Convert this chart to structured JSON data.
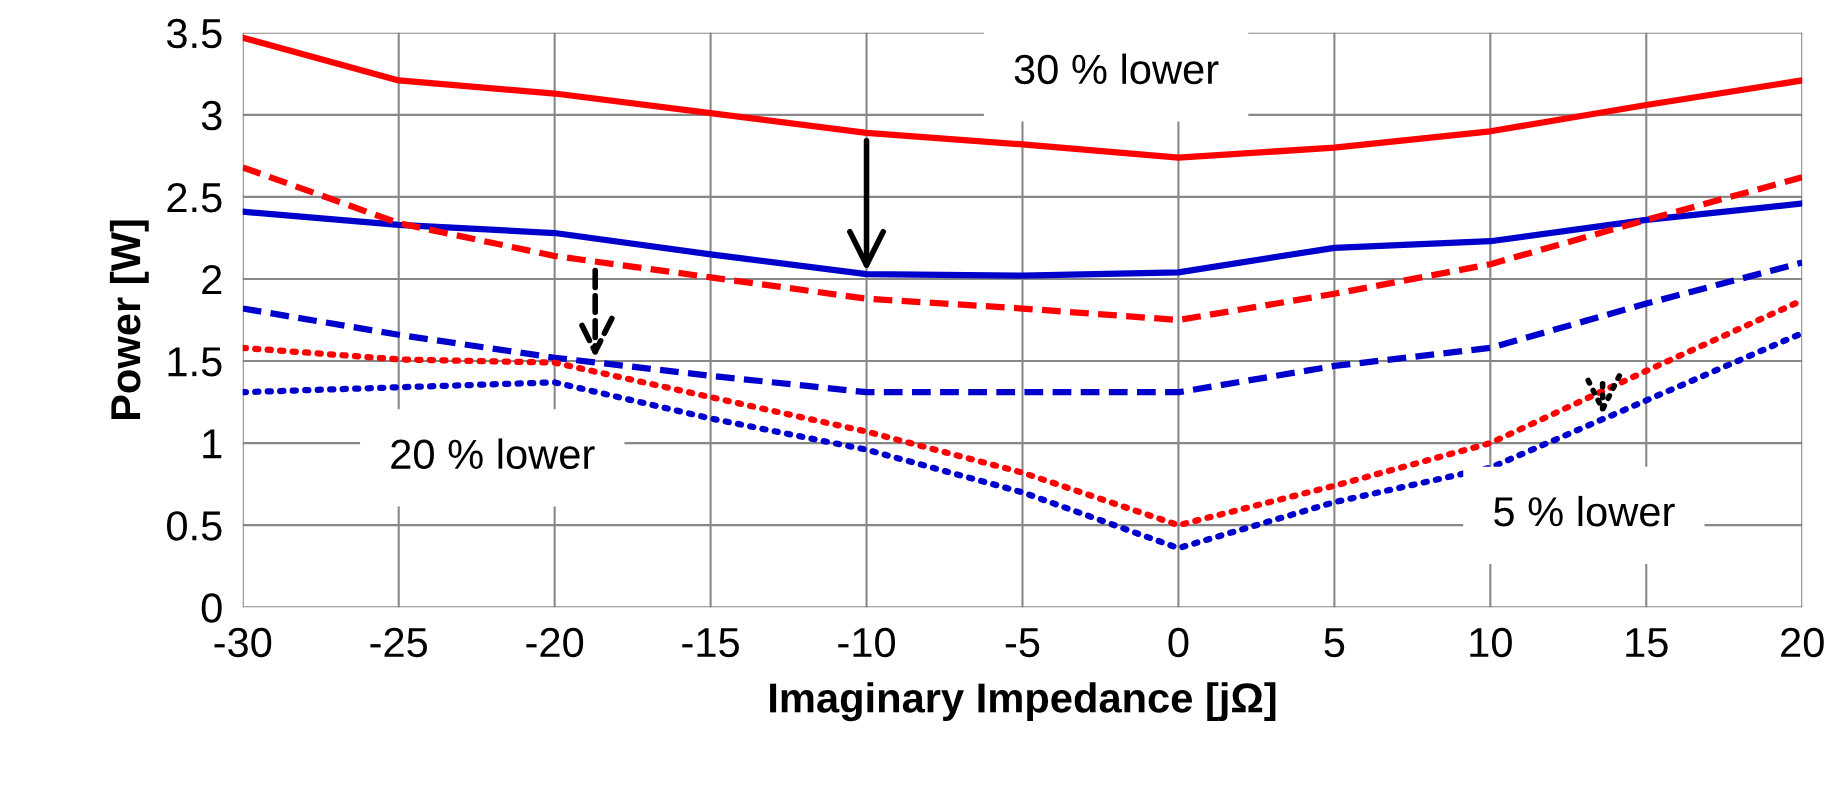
{
  "chart_data": {
    "type": "line",
    "xlabel": "Imaginary Impedance [jΩ]",
    "ylabel": "Power [W]",
    "x": [
      -30,
      -25,
      -20,
      -15,
      -10,
      -5,
      0,
      5,
      10,
      15,
      20
    ],
    "series": [
      {
        "color": "#ff0000",
        "line_style": "solid",
        "values": [
          3.47,
          3.21,
          3.13,
          3.01,
          2.89,
          2.82,
          2.74,
          2.8,
          2.9,
          3.06,
          3.21
        ]
      },
      {
        "color": "#0000cc",
        "line_style": "solid",
        "values": [
          2.41,
          2.33,
          2.28,
          2.15,
          2.03,
          2.02,
          2.04,
          2.19,
          2.23,
          2.36,
          2.46
        ]
      },
      {
        "color": "#ff0000",
        "line_style": "dashed",
        "values": [
          2.68,
          2.34,
          2.14,
          2.01,
          1.88,
          1.82,
          1.75,
          1.91,
          2.09,
          2.36,
          2.62
        ]
      },
      {
        "color": "#0000cc",
        "line_style": "dashed",
        "values": [
          1.82,
          1.66,
          1.52,
          1.41,
          1.31,
          1.31,
          1.31,
          1.47,
          1.58,
          1.85,
          2.1
        ]
      },
      {
        "color": "#ff0000",
        "line_style": "dotted",
        "values": [
          1.58,
          1.51,
          1.49,
          1.28,
          1.07,
          0.82,
          0.5,
          0.74,
          1.0,
          1.44,
          1.87
        ]
      },
      {
        "color": "#0000cc",
        "line_style": "dotted",
        "values": [
          1.31,
          1.34,
          1.37,
          1.15,
          0.96,
          0.7,
          0.36,
          0.64,
          0.85,
          1.26,
          1.67
        ]
      }
    ],
    "annotations": [
      "30 % lower",
      "20 % lower",
      "5 % lower"
    ],
    "xlim": [
      -30,
      20
    ],
    "xticks": [
      -30,
      -25,
      -20,
      -15,
      -10,
      -5,
      0,
      5,
      10,
      15,
      20
    ],
    "ylim": [
      0,
      3.5
    ],
    "yticks": [
      0,
      0.5,
      1,
      1.5,
      2,
      2.5,
      3,
      3.5
    ],
    "grid": true,
    "legend": false,
    "marker": "none"
  }
}
